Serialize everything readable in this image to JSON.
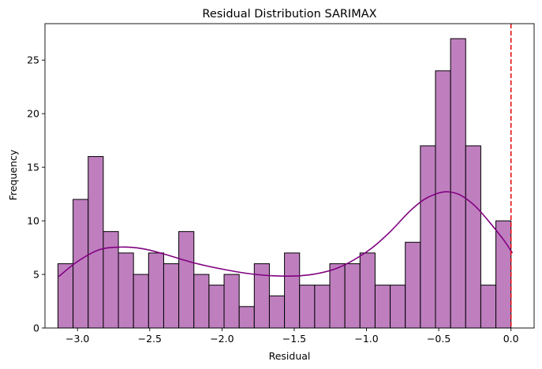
{
  "chart_data": {
    "type": "bar",
    "title": "Residual Distribution SARIMAX",
    "xlabel": "Residual",
    "ylabel": "Frequency",
    "xlim": [
      -3.225,
      0.16
    ],
    "ylim": [
      0,
      28.4
    ],
    "xticks": [
      -3.0,
      -2.5,
      -2.0,
      -1.5,
      -1.0,
      -0.5,
      0.0
    ],
    "xtick_labels": [
      "−3.0",
      "−2.5",
      "−2.0",
      "−1.5",
      "−1.0",
      "−0.5",
      "0.0"
    ],
    "yticks": [
      0,
      5,
      10,
      15,
      20,
      25
    ],
    "ytick_labels": [
      "0",
      "5",
      "10",
      "15",
      "20",
      "25"
    ],
    "bin_start": -3.135,
    "bin_width": 0.1045,
    "counts": [
      6,
      12,
      16,
      9,
      7,
      5,
      7,
      6,
      9,
      5,
      4,
      5,
      2,
      6,
      3,
      7,
      4,
      4,
      6,
      6,
      7,
      4,
      4,
      8,
      17,
      24,
      27,
      17,
      4,
      10
    ],
    "kde": {
      "x": [
        -3.13,
        -3.0,
        -2.85,
        -2.7,
        -2.55,
        -2.4,
        -2.2,
        -2.0,
        -1.8,
        -1.6,
        -1.4,
        -1.2,
        -1.0,
        -0.85,
        -0.7,
        -0.6,
        -0.5,
        -0.43,
        -0.35,
        -0.25,
        -0.15,
        -0.05,
        0.01
      ],
      "y": [
        4.8,
        6.2,
        7.3,
        7.55,
        7.4,
        6.9,
        6.1,
        5.5,
        5.05,
        4.85,
        4.95,
        5.6,
        7.1,
        8.8,
        10.9,
        12.0,
        12.6,
        12.7,
        12.4,
        11.4,
        9.9,
        8.2,
        7.0
      ]
    },
    "vline_x": 0.0,
    "grid": false,
    "colors": {
      "bar_fill": "#bf7fbf",
      "bar_edge": "#000000",
      "kde_line": "#800080",
      "vline": "#e01010"
    }
  }
}
